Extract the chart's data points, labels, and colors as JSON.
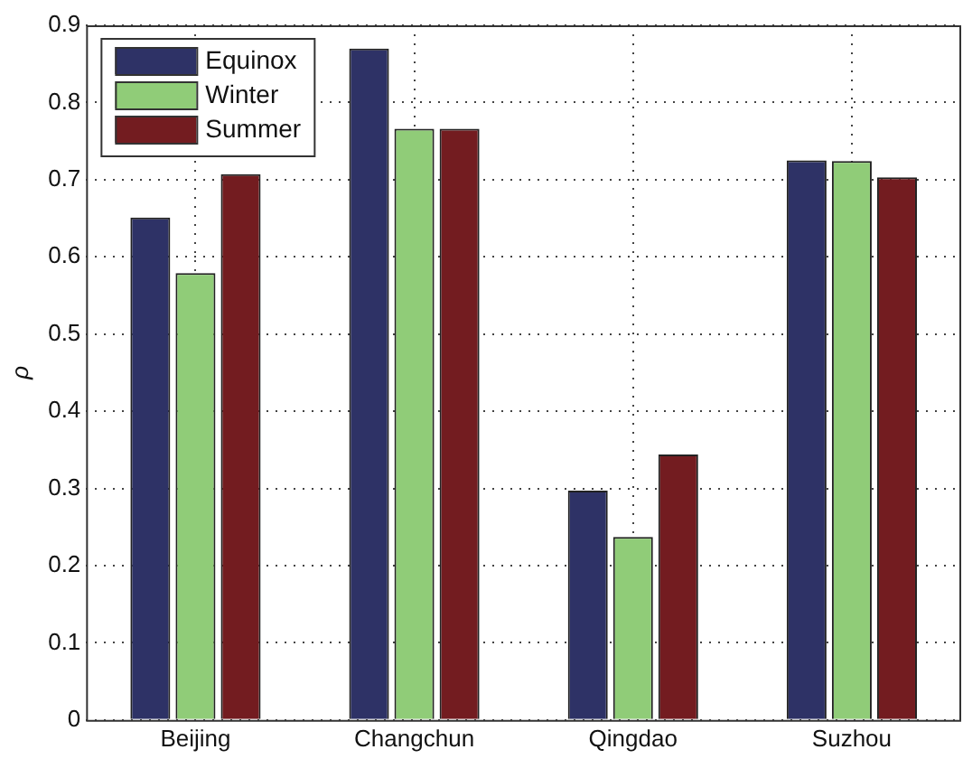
{
  "chart_data": {
    "type": "bar",
    "ylabel": "ρ",
    "categories": [
      "Beijing",
      "Changchun",
      "Qingdao",
      "Suzhou"
    ],
    "series": [
      {
        "name": "Equinox",
        "color": "#2e3266",
        "values": [
          0.651,
          0.87,
          0.297,
          0.725
        ]
      },
      {
        "name": "Winter",
        "color": "#90cc78",
        "values": [
          0.579,
          0.766,
          0.237,
          0.724
        ]
      },
      {
        "name": "Summer",
        "color": "#731c20",
        "values": [
          0.707,
          0.766,
          0.344,
          0.703
        ]
      }
    ],
    "ylim": [
      0,
      0.9
    ],
    "yticks": [
      0,
      0.1,
      0.2,
      0.3,
      0.4,
      0.5,
      0.6,
      0.7,
      0.8,
      0.9
    ],
    "grid": true,
    "legend": "top left"
  }
}
